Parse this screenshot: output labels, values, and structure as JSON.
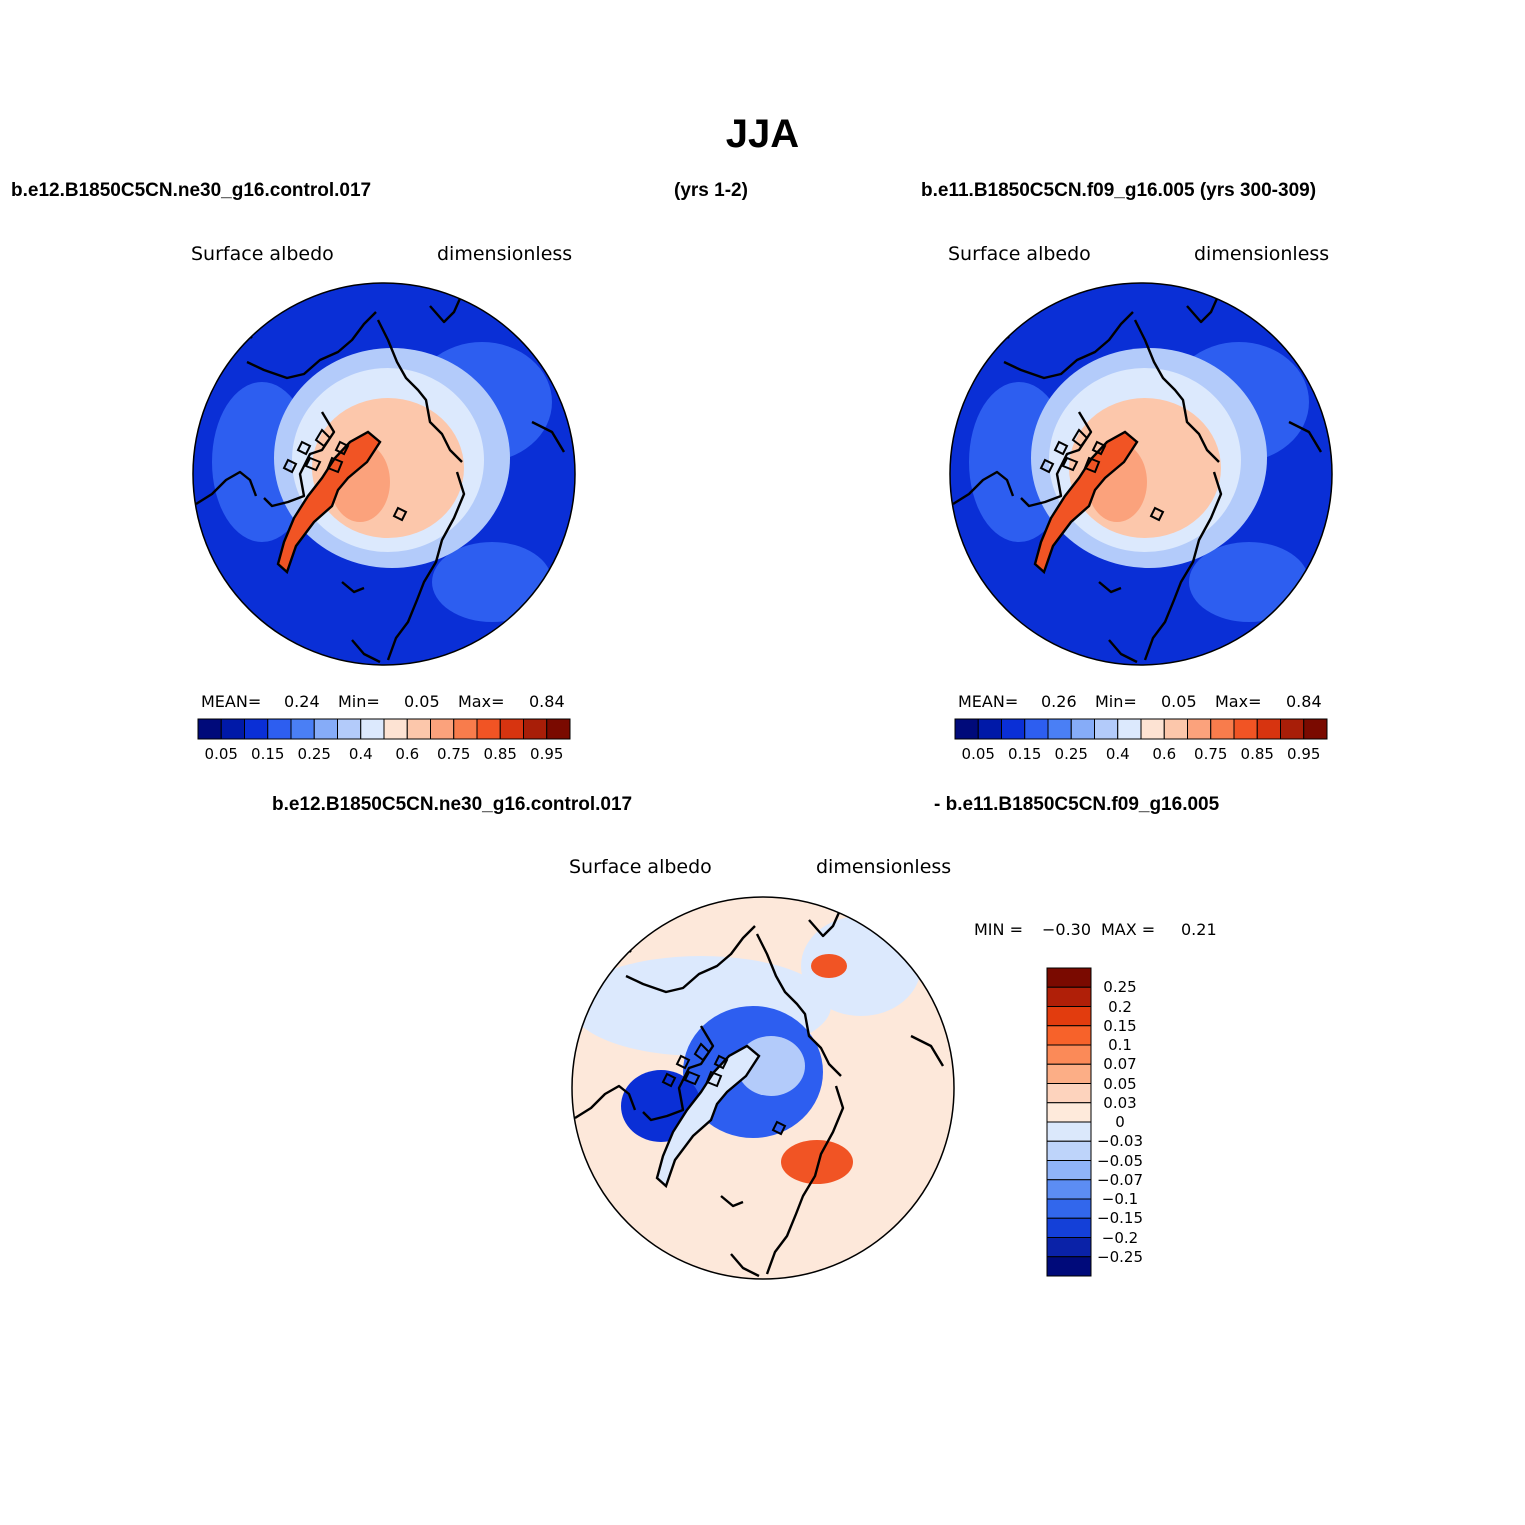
{
  "title": "JJA",
  "header": {
    "left_case": "b.e12.B1850C5CN.ne30_g16.control.017",
    "left_years": "(yrs 1-2)",
    "right_case": "b.e11.B1850C5CN.f09_g16.005 (yrs 300-309)",
    "diff_case_a": "b.e12.B1850C5CN.ne30_g16.control.017",
    "diff_case_b": "- b.e11.B1850C5CN.f09_g16.005"
  },
  "panels": [
    {
      "variable": "Surface  albedo",
      "units": "dimensionless",
      "stats": {
        "mean_label": "MEAN=",
        "mean": "0.24",
        "min_label": "Min=",
        "min": "0.05",
        "max_label": "Max=",
        "max": "0.84"
      }
    },
    {
      "variable": "Surface  albedo",
      "units": "dimensionless",
      "stats": {
        "mean_label": "MEAN=",
        "mean": "0.26",
        "min_label": "Min=",
        "min": "0.05",
        "max_label": "Max=",
        "max": "0.84"
      }
    },
    {
      "variable": "Surface  albedo",
      "units": "dimensionless",
      "stats": {
        "min_label": "MIN =",
        "min": "−0.30",
        "max_label": "MAX =",
        "max": "0.21"
      }
    }
  ],
  "colorbar_abs": {
    "colors": [
      "#000a7a",
      "#0019a8",
      "#0a2fd6",
      "#2d5ef0",
      "#4a7ff5",
      "#86acf8",
      "#b3cbfa",
      "#dce9fd",
      "#fde3d3",
      "#fcc7ab",
      "#fba27c",
      "#f87c4c",
      "#f15424",
      "#d73410",
      "#a81e08",
      "#7a0a00"
    ],
    "labels": [
      "0.05",
      "0.15",
      "0.25",
      "0.4",
      "0.6",
      "0.75",
      "0.85",
      "0.95"
    ]
  },
  "colorbar_diff": {
    "colors": [
      "#7a0a00",
      "#b01f08",
      "#e23c0e",
      "#f7622a",
      "#fb8a58",
      "#fcae86",
      "#fdd3bd",
      "#feeadb",
      "#dbe8fb",
      "#bed4fa",
      "#8fb3f8",
      "#5c8df3",
      "#3267ec",
      "#1440d8",
      "#0a22a8",
      "#000a7a"
    ],
    "labels": [
      "0.25",
      "0.2",
      "0.15",
      "0.1",
      "0.07",
      "0.05",
      "0.03",
      "0",
      "−0.03",
      "−0.05",
      "−0.07",
      "−0.1",
      "−0.15",
      "−0.2",
      "−0.25"
    ]
  },
  "map_colors": {
    "ocean_low": "#0a2fd6",
    "ocean_mid": "#2d5ef0",
    "ice_light": "#b3cbfa",
    "ice_edge": "#dce9fd",
    "seaice": "#fcc7ab",
    "seaice_core": "#fba27c",
    "greenland": "#f15424",
    "diff_neutral": "#fde8da",
    "diff_neg": "#2d5ef0",
    "diff_negstrong": "#0a2fd6",
    "diff_pos": "#f15424"
  }
}
